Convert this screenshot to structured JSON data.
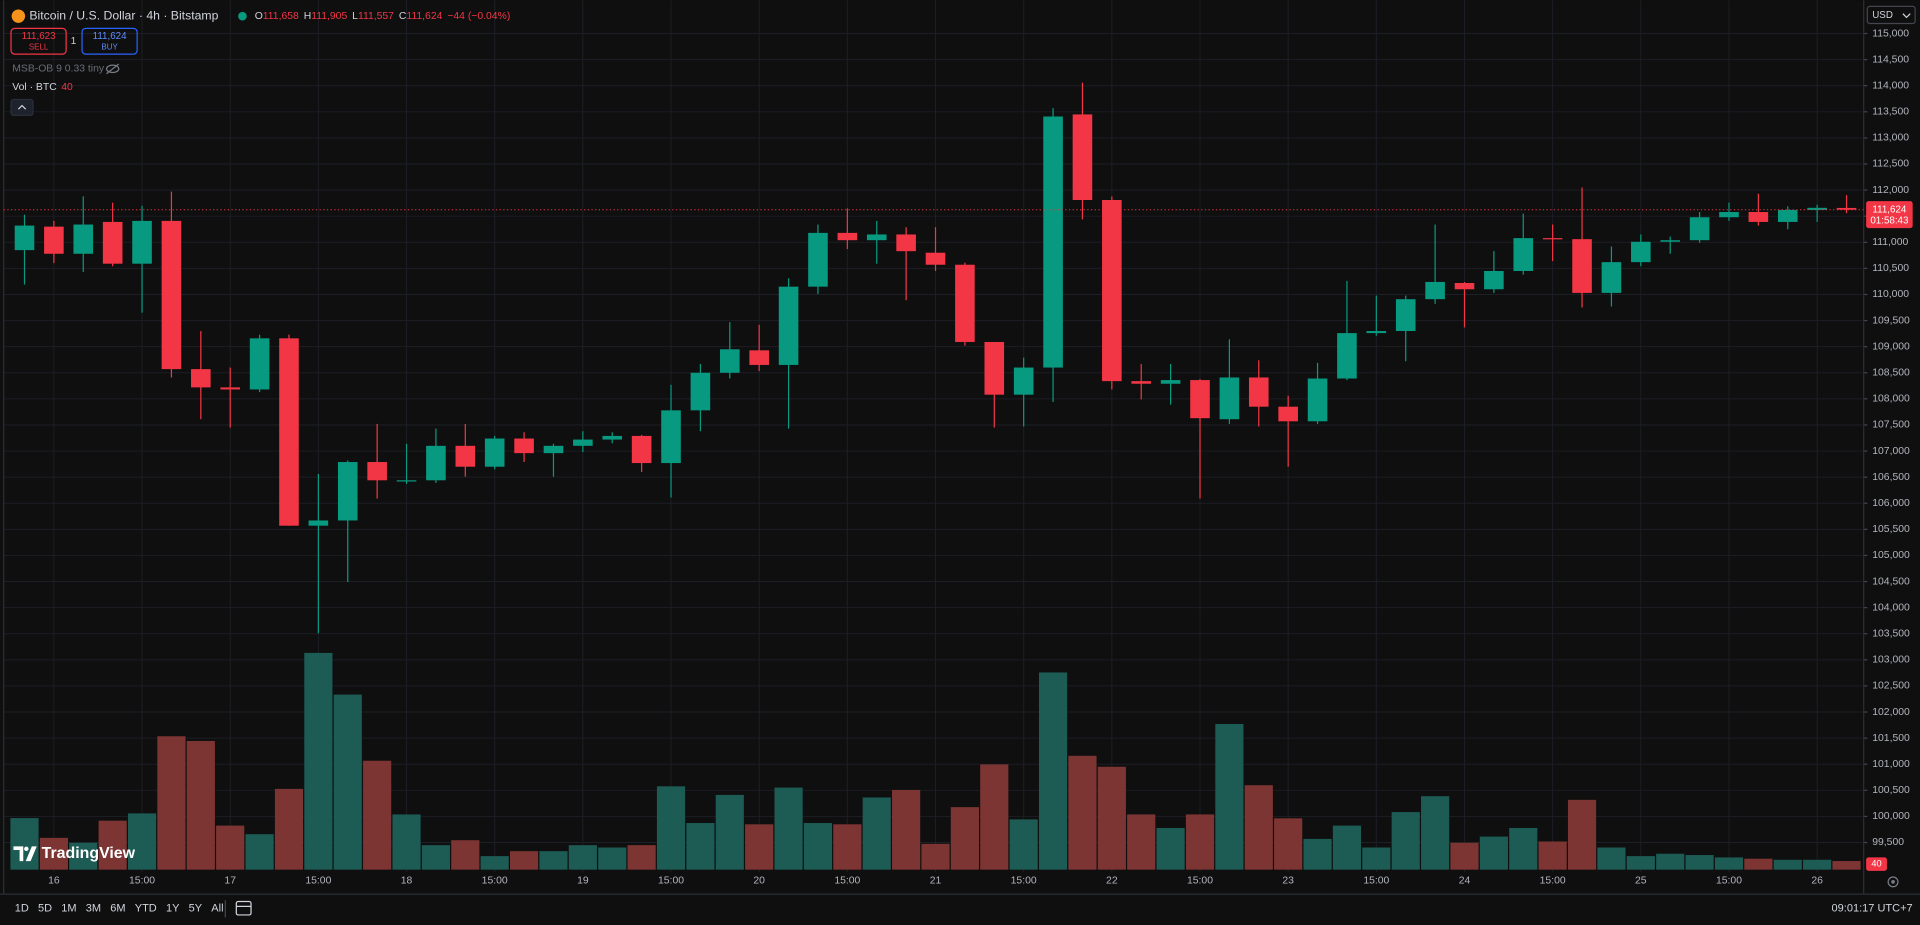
{
  "ui": {
    "symbol": "Bitcoin / U.S. Dollar · 4h · Bitstamp",
    "ohlc": [
      {
        "key": "O",
        "value": "111,658"
      },
      {
        "key": "H",
        "value": "111,905"
      },
      {
        "key": "L",
        "value": "111,557"
      },
      {
        "key": "C",
        "value": "111,624"
      }
    ],
    "change": "−44 (−0.04%)",
    "sell": {
      "price": "111,623",
      "label": "SELL"
    },
    "quantity": "1",
    "buy": {
      "price": "111,624",
      "label": "BUY"
    },
    "indicator": "MSB-OB 9 0.33 tiny",
    "volume_legend": "Vol · BTC",
    "currency": "USD",
    "price_tag": "111,624",
    "countdown": "01:58:43",
    "logo": "TradingView",
    "ranges": [
      "1D",
      "5D",
      "1M",
      "3M",
      "6M",
      "YTD",
      "1Y",
      "5Y",
      "All"
    ],
    "clock": "09:01:17 UTC+7"
  },
  "chart_data": {
    "type": "candlestick",
    "grid": true,
    "up_color": "#089981",
    "down_color": "#f23645",
    "volume_up_color": "#1d5b55",
    "volume_down_color": "#7d3533",
    "categories": [
      null,
      "16",
      null,
      null,
      "15:00",
      null,
      null,
      "17",
      null,
      null,
      "15:00",
      null,
      null,
      "18",
      null,
      null,
      "15:00",
      null,
      null,
      "19",
      null,
      null,
      "15:00",
      null,
      null,
      "20",
      null,
      null,
      "15:00",
      null,
      null,
      "21",
      null,
      null,
      "15:00",
      null,
      null,
      "22",
      null,
      null,
      "15:00",
      null,
      null,
      "23",
      null,
      null,
      "15:00",
      null,
      null,
      "24",
      null,
      null,
      "15:00",
      null,
      null,
      "25",
      null,
      null,
      "15:00",
      null,
      null,
      "26",
      null
    ],
    "open": [
      110850,
      111300,
      110780,
      111390,
      110590,
      111410,
      108570,
      108220,
      108180,
      109160,
      105570,
      105670,
      106790,
      106420,
      106440,
      107100,
      106700,
      107240,
      106960,
      107100,
      107220,
      107290,
      106770,
      107780,
      108500,
      108930,
      108650,
      110150,
      111180,
      111040,
      111150,
      110800,
      110570,
      109090,
      108080,
      108600,
      113450,
      111810,
      108340,
      108290,
      108360,
      107610,
      108410,
      107850,
      107570,
      108390,
      109260,
      109300,
      109910,
      110220,
      110100,
      110450,
      111080,
      111060,
      110030,
      110620,
      111010,
      111040,
      111480,
      111580,
      111390,
      111620,
      111658
    ],
    "high": [
      111530,
      111410,
      111880,
      111760,
      111700,
      111970,
      109300,
      108600,
      109230,
      109230,
      106560,
      106820,
      107520,
      107140,
      107430,
      107520,
      107290,
      107360,
      107140,
      107380,
      107360,
      107310,
      108270,
      108670,
      109470,
      109420,
      110310,
      111340,
      111650,
      111410,
      111290,
      111290,
      110610,
      109090,
      108790,
      113570,
      114060,
      111880,
      108670,
      108670,
      108380,
      109140,
      108740,
      108060,
      108690,
      110260,
      109980,
      109980,
      111340,
      110240,
      110830,
      111550,
      111340,
      112050,
      110920,
      111150,
      111110,
      111580,
      111760,
      111930,
      111690,
      111720,
      111905
    ],
    "low": [
      110190,
      110600,
      110430,
      110540,
      109650,
      108410,
      107610,
      107450,
      108130,
      105570,
      103510,
      104490,
      106090,
      106370,
      106390,
      106510,
      106650,
      106790,
      106510,
      106980,
      107150,
      106600,
      106110,
      107380,
      108390,
      108530,
      107430,
      110010,
      110870,
      110590,
      109890,
      110450,
      109020,
      107450,
      107470,
      107940,
      111440,
      108180,
      107990,
      107890,
      106090,
      107520,
      107470,
      106700,
      107520,
      108360,
      109210,
      108720,
      109820,
      109370,
      110030,
      110380,
      110640,
      109750,
      109770,
      110540,
      110780,
      110990,
      111410,
      111320,
      111250,
      111390,
      111557
    ],
    "close": [
      111320,
      110780,
      111340,
      110590,
      111410,
      108570,
      108220,
      108180,
      109160,
      105570,
      105670,
      106790,
      106440,
      106440,
      107100,
      106700,
      107240,
      106960,
      107100,
      107220,
      107290,
      106770,
      107780,
      108500,
      108950,
      108650,
      110150,
      111180,
      111040,
      111150,
      110830,
      110570,
      109090,
      108080,
      108600,
      113410,
      111810,
      108340,
      108290,
      108360,
      107630,
      108410,
      107850,
      107570,
      108390,
      109260,
      109300,
      109910,
      110240,
      110100,
      110450,
      111080,
      111060,
      110030,
      110620,
      111010,
      111040,
      111480,
      111580,
      111390,
      111620,
      111660,
      111624
    ],
    "volume": [
      240,
      148,
      125,
      228,
      262,
      621,
      599,
      205,
      165,
      376,
      1009,
      815,
      507,
      257,
      114,
      137,
      63,
      86,
      86,
      114,
      103,
      114,
      388,
      217,
      348,
      211,
      382,
      217,
      211,
      336,
      371,
      120,
      291,
      490,
      234,
      918,
      530,
      479,
      257,
      194,
      257,
      678,
      393,
      239,
      143,
      205,
      103,
      268,
      342,
      125,
      154,
      194,
      131,
      325,
      103,
      63,
      74,
      68,
      57,
      51,
      46,
      46,
      40
    ],
    "ylim": [
      98980,
      115520
    ],
    "yticks": [
      {
        "value": 99500,
        "label": "99,500"
      },
      {
        "value": 100000,
        "label": "100,000"
      },
      {
        "value": 100500,
        "label": "100,500"
      },
      {
        "value": 101000,
        "label": "101,000"
      },
      {
        "value": 101500,
        "label": "101,500"
      },
      {
        "value": 102000,
        "label": "102,000"
      },
      {
        "value": 102500,
        "label": "102,500"
      },
      {
        "value": 103000,
        "label": "103,000"
      },
      {
        "value": 103500,
        "label": "103,500"
      },
      {
        "value": 104000,
        "label": "104,000"
      },
      {
        "value": 104500,
        "label": "104,500"
      },
      {
        "value": 105000,
        "label": "105,000"
      },
      {
        "value": 105500,
        "label": "105,500"
      },
      {
        "value": 106000,
        "label": "106,000"
      },
      {
        "value": 106500,
        "label": "106,500"
      },
      {
        "value": 107000,
        "label": "107,000"
      },
      {
        "value": 107500,
        "label": "107,500"
      },
      {
        "value": 108000,
        "label": "108,000"
      },
      {
        "value": 108500,
        "label": "108,500"
      },
      {
        "value": 109000,
        "label": "109,000"
      },
      {
        "value": 109500,
        "label": "109,500"
      },
      {
        "value": 110000,
        "label": "110,000"
      },
      {
        "value": 110500,
        "label": "110,500"
      },
      {
        "value": 111000,
        "label": "111,000"
      },
      {
        "value": 111500,
        "label": "111,500"
      },
      {
        "value": 112000,
        "label": "112,000"
      },
      {
        "value": 112500,
        "label": "112,500"
      },
      {
        "value": 113000,
        "label": "113,000"
      },
      {
        "value": 113500,
        "label": "113,500"
      },
      {
        "value": 114000,
        "label": "114,000"
      },
      {
        "value": 114500,
        "label": "114,500"
      },
      {
        "value": 115000,
        "label": "115,000"
      }
    ]
  }
}
